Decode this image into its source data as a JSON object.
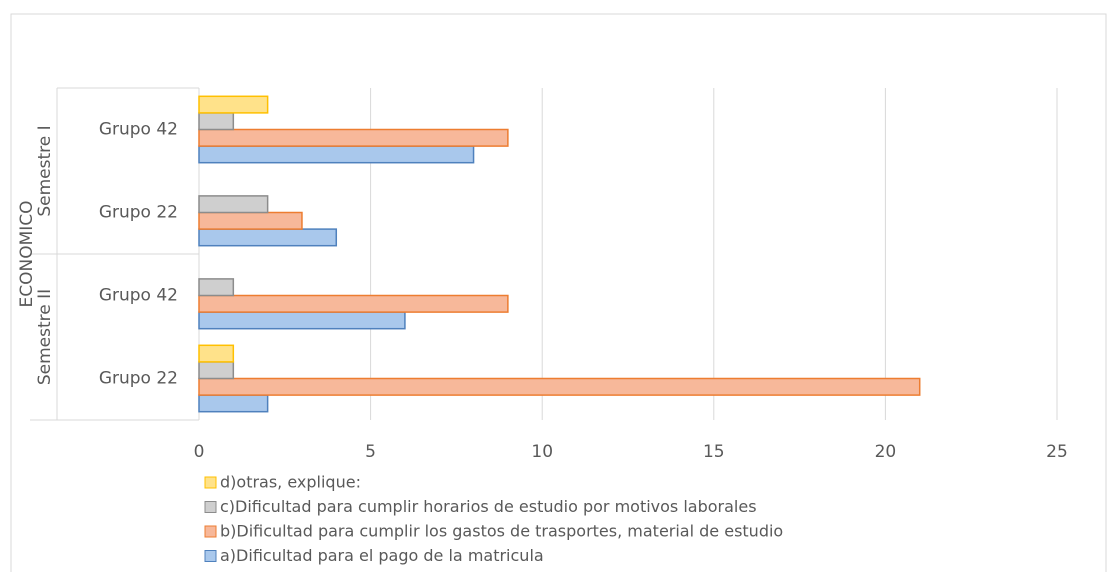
{
  "chart_data": {
    "type": "barh",
    "outer_group": "ECONOMICO",
    "category_groups": [
      {
        "label": "Semestre II",
        "span": 2
      },
      {
        "label": "Semestre I",
        "span": 2
      }
    ],
    "categories": [
      "Grupo 22",
      "Grupo 42",
      "Grupo 22",
      "Grupo 42"
    ],
    "series": [
      {
        "name": "a)Dificultad para el pago de la matricula",
        "color": "#a9c8ec",
        "edge": "#4f81bd",
        "values": [
          2,
          6,
          4,
          8
        ]
      },
      {
        "name": "b)Dificultad para cumplir los gastos de trasportes, material de estudio",
        "color": "#f7b89a",
        "edge": "#ed7d31",
        "values": [
          21,
          9,
          3,
          9
        ]
      },
      {
        "name": "c)Dificultad para cumplir horarios de estudio por motivos laborales",
        "color": "#cfcfcf",
        "edge": "#8c8c8c",
        "values": [
          1,
          1,
          2,
          1
        ]
      },
      {
        "name": "d)otras, explique:",
        "color": "#ffe28a",
        "edge": "#ffc000",
        "values": [
          1,
          null,
          null,
          2
        ]
      }
    ],
    "xlim": [
      0,
      25
    ],
    "xticks": [
      0,
      5,
      10,
      15,
      20,
      25
    ],
    "grid": true
  }
}
